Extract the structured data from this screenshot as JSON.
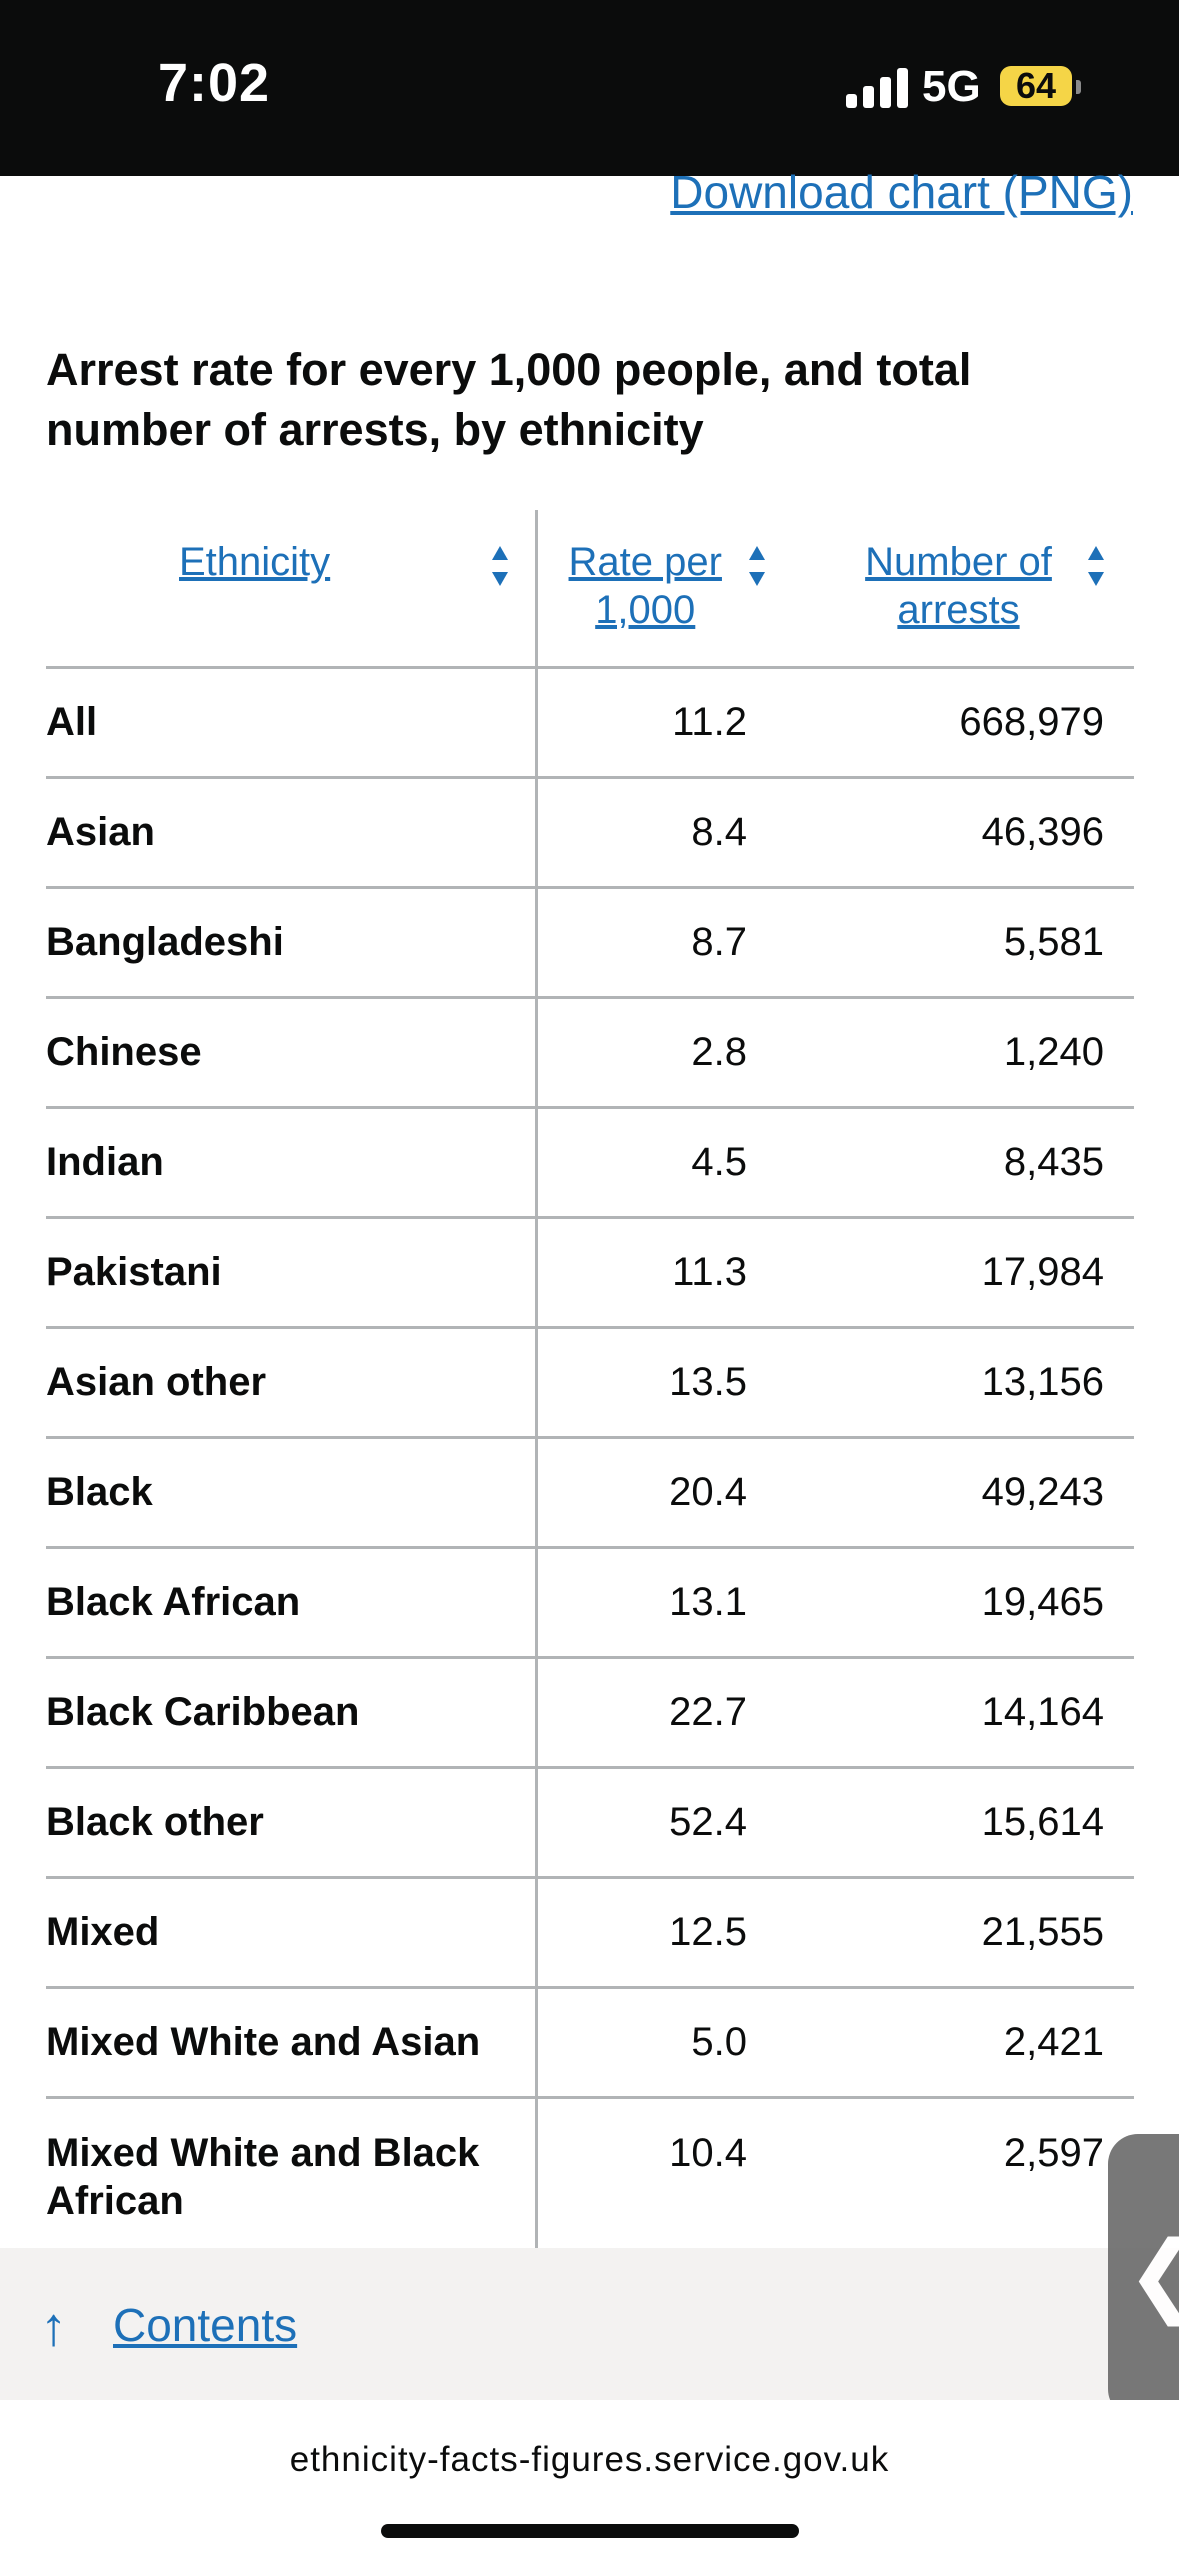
{
  "status_bar": {
    "time": "7:02",
    "network": "5G",
    "battery": "64"
  },
  "download_link": "Download chart (PNG)",
  "table": {
    "title": "Arrest rate for every 1,000 people, and total number of arrests, by ethnicity",
    "headers": {
      "ethnicity": "Ethnicity",
      "rate": "Rate per 1,000",
      "arrests": "Number of arrests"
    },
    "rows": [
      {
        "ethnicity": "All",
        "rate": "11.2",
        "arrests": "668,979"
      },
      {
        "ethnicity": "Asian",
        "rate": "8.4",
        "arrests": "46,396"
      },
      {
        "ethnicity": "Bangladeshi",
        "rate": "8.7",
        "arrests": "5,581"
      },
      {
        "ethnicity": "Chinese",
        "rate": "2.8",
        "arrests": "1,240"
      },
      {
        "ethnicity": "Indian",
        "rate": "4.5",
        "arrests": "8,435"
      },
      {
        "ethnicity": "Pakistani",
        "rate": "11.3",
        "arrests": "17,984"
      },
      {
        "ethnicity": "Asian other",
        "rate": "13.5",
        "arrests": "13,156"
      },
      {
        "ethnicity": "Black",
        "rate": "20.4",
        "arrests": "49,243"
      },
      {
        "ethnicity": "Black African",
        "rate": "13.1",
        "arrests": "19,465"
      },
      {
        "ethnicity": "Black Caribbean",
        "rate": "22.7",
        "arrests": "14,164"
      },
      {
        "ethnicity": "Black other",
        "rate": "52.4",
        "arrests": "15,614"
      },
      {
        "ethnicity": "Mixed",
        "rate": "12.5",
        "arrests": "21,555"
      },
      {
        "ethnicity": "Mixed White and Asian",
        "rate": "5.0",
        "arrests": "2,421"
      },
      {
        "ethnicity": "Mixed White and Black African",
        "rate": "10.4",
        "arrests": "2,597"
      }
    ]
  },
  "contents_link": "Contents",
  "footer": {
    "domain": "ethnicity-facts-figures.service.gov.uk"
  },
  "colors": {
    "link": "#1d70b8",
    "border": "#b1b4b6",
    "status_bar": "#0b0c0c",
    "battery": "#f5d547"
  },
  "icons": {
    "sort": "sort-arrows-icon",
    "back": "chevron-left-icon",
    "contents": "arrow-up-icon"
  }
}
